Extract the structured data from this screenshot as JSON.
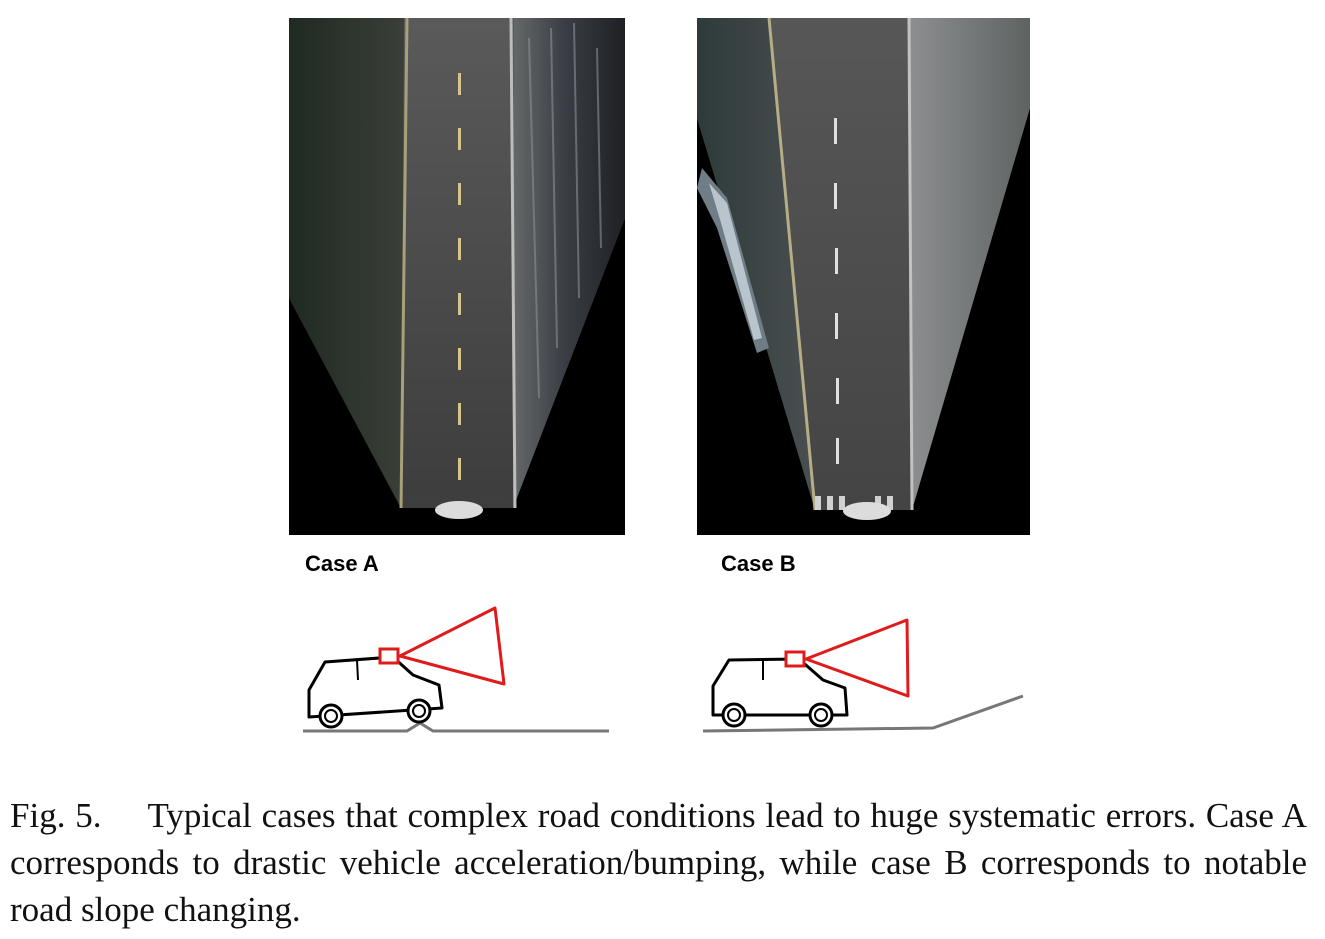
{
  "figure": {
    "panels": [
      {
        "id": "case-a",
        "label": "Case A"
      },
      {
        "id": "case-b",
        "label": "Case B"
      }
    ],
    "caption": {
      "number": "Fig. 5.",
      "text": "Typical cases that complex road conditions lead to huge systematic errors. Case A corresponds to drastic vehicle acceleration/bumping, while case B corresponds to notable road slope changing."
    },
    "colors": {
      "camera_frustum": "#e01b1b",
      "vehicle_outline": "#000000",
      "road_line": "#777777",
      "panel_background": "#000000",
      "road_surface": "#4a4a4a"
    }
  }
}
